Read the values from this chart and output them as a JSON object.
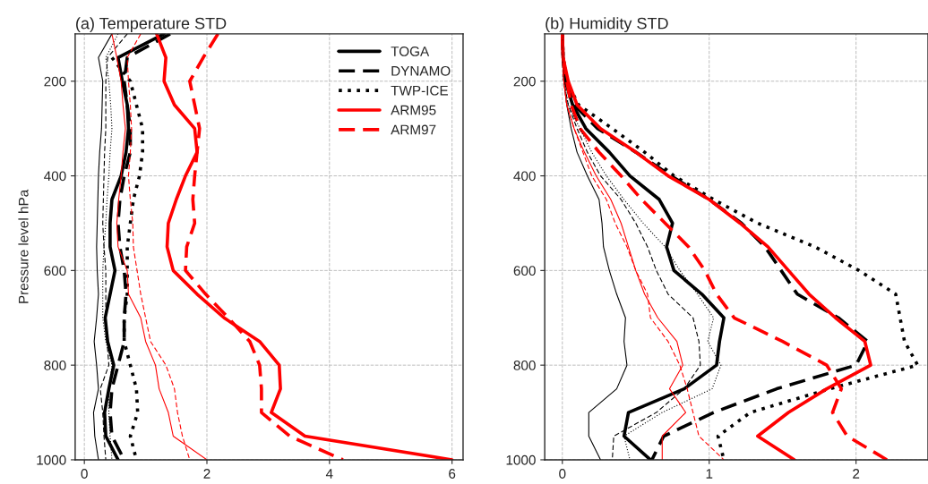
{
  "chart_data": [
    {
      "type": "line",
      "title": "(a) Temperature STD",
      "ylabel": "Pressure level hPa",
      "orientation": "horizontal",
      "x": [
        100,
        150,
        200,
        250,
        300,
        350,
        400,
        450,
        500,
        550,
        600,
        650,
        700,
        750,
        800,
        850,
        900,
        950,
        1000
      ],
      "xlim": [
        -0.15,
        6.18
      ],
      "xticks": [
        0,
        2,
        4,
        6
      ],
      "ylim": [
        1000,
        100
      ],
      "yticks": [
        200,
        400,
        600,
        800,
        1000
      ],
      "grid": true,
      "legend": "top right",
      "series": [
        {
          "name": "TOGA",
          "color": "#000000",
          "line_style": "solid",
          "values": [
            1.3,
            0.55,
            0.62,
            0.7,
            0.72,
            0.68,
            0.6,
            0.45,
            0.42,
            0.42,
            0.5,
            0.42,
            0.34,
            0.38,
            0.48,
            0.4,
            0.33,
            0.35,
            0.55
          ]
        },
        {
          "name": "DYNAMO",
          "color": "#000000",
          "line_style": "dashed",
          "values": [
            1.4,
            0.7,
            0.65,
            0.7,
            0.75,
            0.75,
            0.65,
            0.58,
            0.55,
            0.58,
            0.65,
            0.68,
            0.65,
            0.65,
            0.55,
            0.45,
            0.42,
            0.45,
            0.65
          ]
        },
        {
          "name": "TWP-ICE",
          "color": "#000000",
          "line_style": "dotted",
          "values": [
            null,
            0.45,
            0.75,
            0.85,
            0.95,
            0.95,
            0.9,
            0.8,
            0.75,
            0.7,
            0.7,
            0.7,
            0.65,
            0.65,
            0.75,
            0.85,
            0.87,
            0.75,
            0.85
          ]
        },
        {
          "name": "ARM95",
          "color": "#ff0000",
          "line_style": "solid",
          "values": [
            1.18,
            1.33,
            1.3,
            1.47,
            1.8,
            1.84,
            1.65,
            1.5,
            1.37,
            1.35,
            1.45,
            1.84,
            2.28,
            2.86,
            3.18,
            3.2,
            3.05,
            3.6,
            6.0
          ]
        },
        {
          "name": "ARM97",
          "color": "#ff0000",
          "line_style": "dashed",
          "values": [
            2.18,
            1.94,
            1.72,
            1.8,
            1.88,
            1.84,
            1.8,
            1.77,
            1.8,
            1.67,
            1.65,
            1.98,
            2.35,
            2.7,
            2.86,
            2.89,
            2.89,
            3.35,
            4.22
          ]
        },
        {
          "color": "#000000",
          "line_style": "solid",
          "values": [
            0.45,
            0.23,
            0.3,
            0.29,
            0.28,
            0.25,
            0.23,
            0.22,
            0.21,
            0.2,
            0.21,
            0.23,
            0.2,
            0.16,
            0.2,
            0.23,
            0.15,
            0.17,
            0.23
          ]
        },
        {
          "color": "#000000",
          "line_style": "dashed",
          "values": [
            0.7,
            0.38,
            0.35,
            0.35,
            0.35,
            0.33,
            0.32,
            0.31,
            0.3,
            0.32,
            0.35,
            0.35,
            0.35,
            0.37,
            0.4,
            0.26,
            0.3,
            0.32,
            0.35
          ]
        },
        {
          "color": "#000000",
          "line_style": "dotted",
          "values": [
            0.55,
            0.35,
            0.4,
            0.43,
            0.45,
            0.42,
            0.4,
            0.37,
            0.35,
            0.32,
            0.3,
            0.3,
            0.3,
            0.35,
            0.45,
            0.4,
            0.4,
            0.42,
            0.45
          ]
        },
        {
          "color": "#ff0000",
          "line_style": "solid",
          "values": [
            0.45,
            0.53,
            0.6,
            0.63,
            0.67,
            0.63,
            0.6,
            0.56,
            0.53,
            0.55,
            0.7,
            0.72,
            0.92,
            1.0,
            1.16,
            1.22,
            1.37,
            1.45,
            2.0
          ]
        },
        {
          "color": "#ff0000",
          "line_style": "dashed",
          "values": [
            0.92,
            0.7,
            0.72,
            0.75,
            0.77,
            0.75,
            0.72,
            0.75,
            0.79,
            0.8,
            0.86,
            0.92,
            1.0,
            1.08,
            1.33,
            1.47,
            1.52,
            1.6,
            1.72
          ]
        }
      ]
    },
    {
      "type": "line",
      "title": "(b) Humidity STD",
      "orientation": "horizontal",
      "x": [
        100,
        150,
        200,
        250,
        300,
        350,
        400,
        450,
        500,
        550,
        600,
        650,
        700,
        750,
        800,
        850,
        900,
        950,
        1000
      ],
      "xlim": [
        -0.12,
        2.49
      ],
      "xticks": [
        0,
        1,
        2
      ],
      "ylim": [
        1000,
        100
      ],
      "yticks": [
        200,
        400,
        600,
        800,
        1000
      ],
      "grid": true,
      "series": [
        {
          "color": "#000000",
          "line_style": "solid",
          "values": [
            0,
            0.005,
            0.02,
            0.07,
            0.16,
            0.32,
            0.46,
            0.66,
            0.75,
            0.71,
            0.76,
            0.95,
            1.1,
            1.07,
            1.05,
            0.83,
            0.45,
            0.42,
            0.6
          ]
        },
        {
          "color": "#000000",
          "line_style": "dashed",
          "values": [
            0,
            0.005,
            0.03,
            0.08,
            0.24,
            0.5,
            0.74,
            1.0,
            1.22,
            1.38,
            1.49,
            1.6,
            1.88,
            2.08,
            2.0,
            1.46,
            1.03,
            0.69,
            0.61
          ]
        },
        {
          "color": "#000000",
          "line_style": "dotted",
          "values": [
            0,
            0.005,
            0.03,
            0.11,
            0.34,
            0.56,
            0.76,
            1.03,
            1.33,
            1.72,
            2.02,
            2.27,
            2.3,
            2.33,
            2.42,
            1.82,
            1.28,
            1.06,
            1.1
          ]
        },
        {
          "color": "#ff0000",
          "line_style": "solid",
          "values": [
            0,
            0.005,
            0.04,
            0.1,
            0.26,
            0.5,
            0.72,
            1.0,
            1.21,
            1.4,
            1.54,
            1.68,
            1.86,
            2.06,
            2.1,
            1.8,
            1.54,
            1.33,
            1.58
          ]
        },
        {
          "color": "#ff0000",
          "line_style": "dashed",
          "values": [
            0,
            0.005,
            0.03,
            0.06,
            0.12,
            0.25,
            0.4,
            0.54,
            0.7,
            0.86,
            0.97,
            1.05,
            1.17,
            1.5,
            1.8,
            1.9,
            1.84,
            1.94,
            2.21
          ]
        },
        {
          "color": "#000000",
          "line_style": "solid",
          "values": [
            0,
            0,
            0.01,
            0.03,
            0.06,
            0.1,
            0.17,
            0.25,
            0.27,
            0.28,
            0.32,
            0.37,
            0.43,
            0.42,
            0.44,
            0.37,
            0.18,
            0.18,
            0.26
          ]
        },
        {
          "color": "#000000",
          "line_style": "dashed",
          "values": [
            0,
            0,
            0.01,
            0.04,
            0.1,
            0.17,
            0.26,
            0.4,
            0.5,
            0.58,
            0.64,
            0.72,
            0.89,
            0.93,
            0.94,
            0.83,
            0.64,
            0.35,
            0.34
          ]
        },
        {
          "color": "#000000",
          "line_style": "dotted",
          "values": [
            0,
            0,
            0.01,
            0.04,
            0.12,
            0.2,
            0.3,
            0.42,
            0.55,
            0.7,
            0.8,
            0.92,
            1.03,
            0.99,
            1.08,
            1.02,
            0.68,
            0.42,
            0.46
          ]
        },
        {
          "color": "#ff0000",
          "line_style": "solid",
          "values": [
            0,
            0,
            0.01,
            0.03,
            0.08,
            0.15,
            0.23,
            0.33,
            0.4,
            0.45,
            0.5,
            0.56,
            0.65,
            0.78,
            0.82,
            0.73,
            0.84,
            0.68,
            0.68
          ]
        },
        {
          "color": "#ff0000",
          "line_style": "dashed",
          "values": [
            0,
            0,
            0.01,
            0.03,
            0.08,
            0.14,
            0.2,
            0.3,
            0.36,
            0.44,
            0.5,
            0.58,
            0.6,
            0.72,
            0.8,
            0.85,
            0.89,
            0.93,
            1.1
          ]
        }
      ]
    }
  ]
}
